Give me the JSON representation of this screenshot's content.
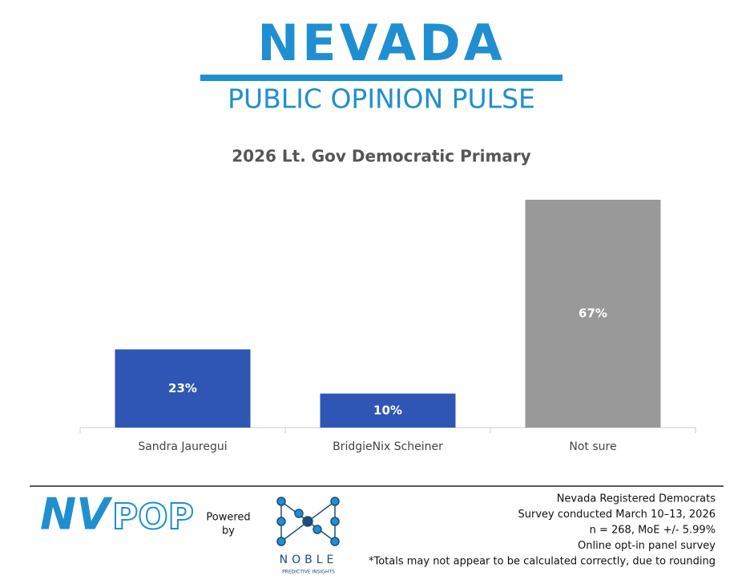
{
  "header": {
    "brand": "NEVADA",
    "subtitle": "PUBLIC OPINION PULSE"
  },
  "chart_data": {
    "type": "bar",
    "title": "2026 Lt. Gov Democratic Primary",
    "categories": [
      "Sandra Jauregui",
      "BridgieNix Scheiner",
      "Not sure"
    ],
    "values": [
      23,
      10,
      67
    ],
    "value_labels": [
      "23%",
      "10%",
      "67%"
    ],
    "colors": [
      "#2f56b5",
      "#2f56b5",
      "#999999"
    ]
  },
  "footer": {
    "logo_left": "NV",
    "logo_right": "POP",
    "powered": [
      "Powered",
      "by"
    ],
    "noble": "NOBLE",
    "noble_sub": "PREDICTIVE INSIGHTS",
    "notes": [
      "Nevada Registered Democrats",
      "Survey conducted March 10–13, 2026",
      "n = 268, MoE +/- 5.99%",
      "Online opt-in panel survey",
      "*Totals may not appear to be calculated correctly, due to rounding"
    ]
  }
}
